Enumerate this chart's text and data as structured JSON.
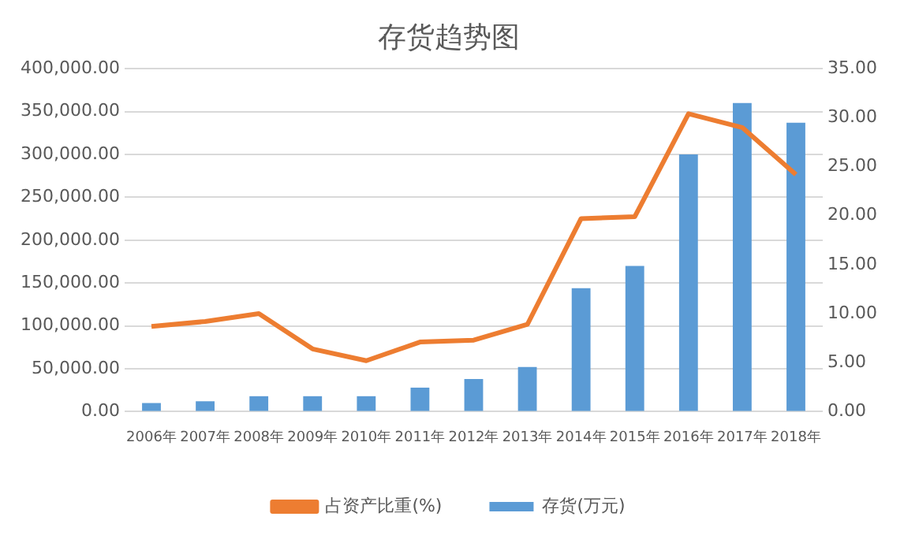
{
  "chart_data": {
    "type": "bar",
    "title": "存货趋势图",
    "categories": [
      "2006年",
      "2007年",
      "2008年",
      "2009年",
      "2010年",
      "2011年",
      "2012年",
      "2013年",
      "2014年",
      "2015年",
      "2016年",
      "2017年",
      "2018年"
    ],
    "series": [
      {
        "name": "存货(万元)",
        "color": "#5b9bd5",
        "values": [
          10000,
          12000,
          18000,
          18000,
          18000,
          28000,
          38000,
          52000,
          144000,
          170000,
          300000,
          360000,
          337000
        ]
      },
      {
        "name": "占资产比重(%)",
        "type": "line",
        "axis": "y2",
        "color": "#ed7d31",
        "values": [
          8.7,
          9.2,
          10.0,
          6.4,
          5.2,
          7.1,
          7.3,
          8.9,
          19.7,
          19.9,
          30.4,
          29.0,
          24.2
        ]
      }
    ],
    "ylim": [
      0,
      400000
    ],
    "yticks": [
      {
        "value": 0,
        "label": "0.00"
      },
      {
        "value": 50000,
        "label": "50,000.00"
      },
      {
        "value": 100000,
        "label": "100,000.00"
      },
      {
        "value": 150000,
        "label": "150,000.00"
      },
      {
        "value": 200000,
        "label": "200,000.00"
      },
      {
        "value": 250000,
        "label": "250,000.00"
      },
      {
        "value": 300000,
        "label": "300,000.00"
      },
      {
        "value": 350000,
        "label": "350,000.00"
      },
      {
        "value": 400000,
        "label": "400,000.00"
      }
    ],
    "y2lim": [
      0,
      35
    ],
    "y2ticks": [
      {
        "value": 0,
        "label": "0.00"
      },
      {
        "value": 5,
        "label": "5.00"
      },
      {
        "value": 10,
        "label": "10.00"
      },
      {
        "value": 15,
        "label": "15.00"
      },
      {
        "value": 20,
        "label": "20.00"
      },
      {
        "value": 25,
        "label": "25.00"
      },
      {
        "value": 30,
        "label": "30.00"
      },
      {
        "value": 35,
        "label": "35.00"
      }
    ],
    "grid": "y",
    "legend": "bottom",
    "marker": "none"
  }
}
